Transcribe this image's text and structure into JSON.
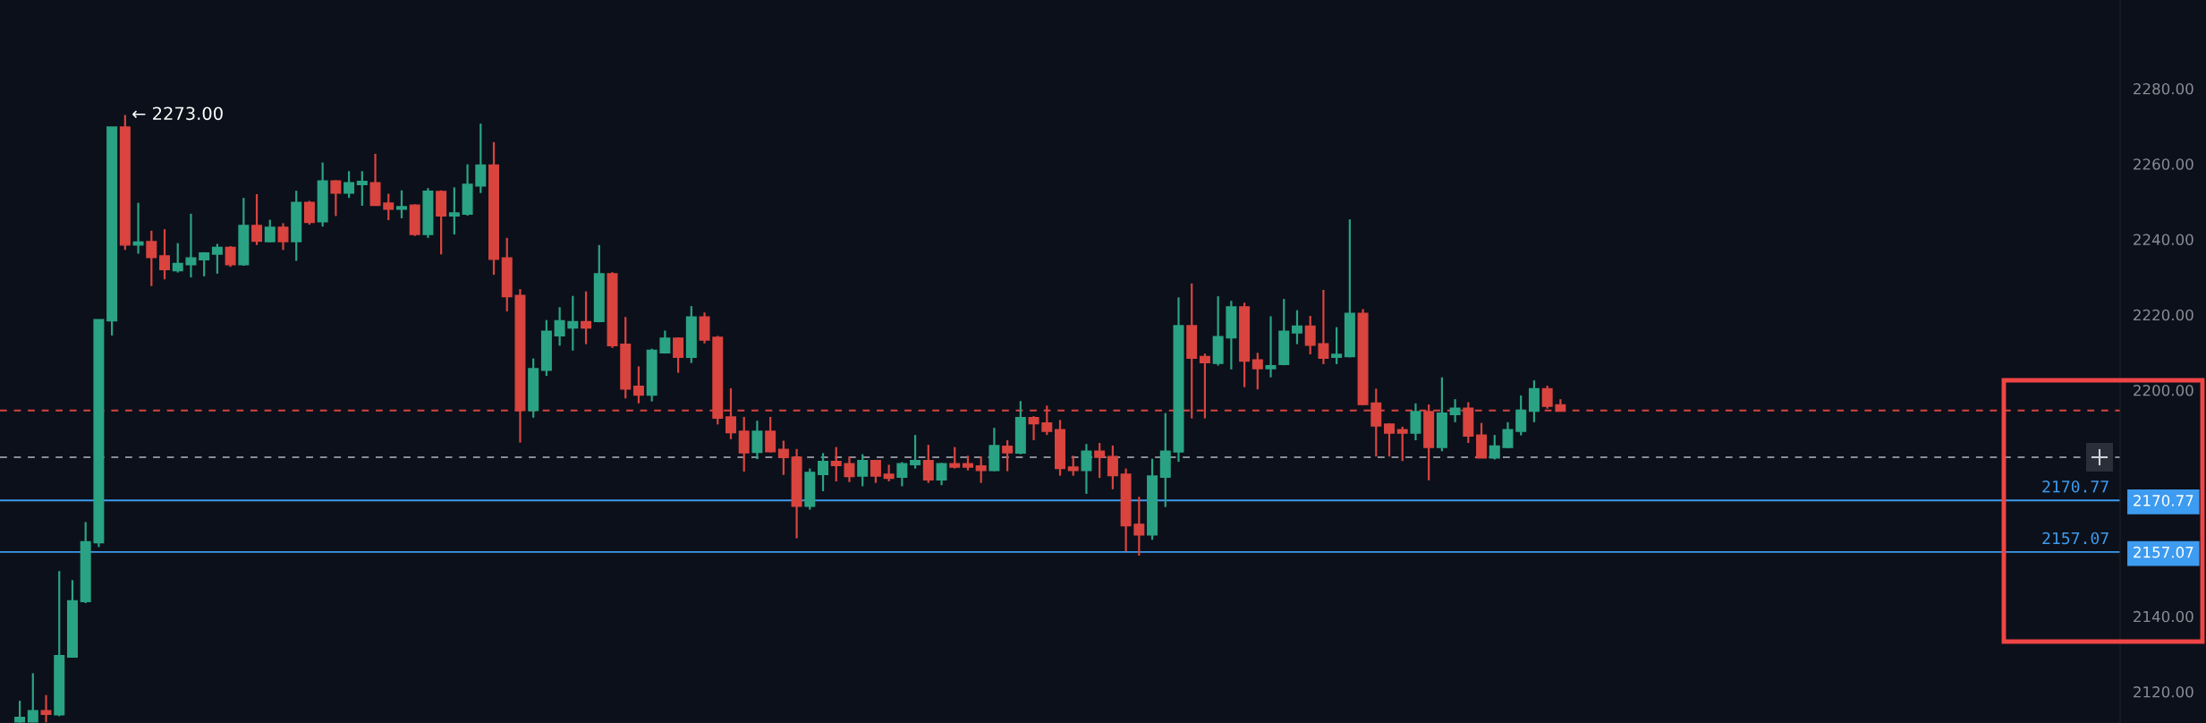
{
  "chart_data": {
    "type": "candlestick",
    "categories": [
      null,
      null,
      null,
      null,
      null,
      null,
      null,
      null,
      null,
      null,
      null,
      null,
      null,
      null,
      null,
      null,
      null,
      null,
      null,
      null,
      null,
      null,
      null,
      null,
      null,
      null,
      null,
      null,
      null,
      null,
      null,
      null,
      null,
      null,
      null,
      null,
      null,
      null,
      null,
      null,
      null,
      null,
      null,
      null,
      null,
      null,
      null,
      null,
      null,
      null,
      null,
      null,
      null,
      null,
      null,
      null,
      null,
      null,
      null,
      null,
      null,
      null,
      null,
      null,
      null,
      null,
      null,
      null,
      null,
      null,
      null,
      null,
      null,
      null,
      null,
      null,
      null,
      null,
      null,
      null,
      null,
      null,
      null,
      null,
      null,
      null,
      null,
      null,
      null,
      null,
      null,
      null,
      null,
      null,
      null,
      null,
      null,
      null,
      null,
      null,
      null,
      null,
      null,
      null,
      null,
      null,
      null,
      null,
      null,
      null,
      null,
      null,
      null,
      null,
      null,
      null,
      null,
      null,
      null,
      null,
      null,
      null,
      null,
      null,
      null,
      null,
      null,
      null,
      null,
      null,
      null,
      null,
      null,
      null,
      null,
      null,
      null,
      null,
      null,
      null,
      null,
      null,
      null,
      null,
      null,
      null,
      null,
      null,
      null,
      null,
      null,
      null,
      null,
      null,
      null,
      null,
      null,
      null,
      null,
      null,
      null
    ],
    "ohlc": [
      null,
      [
        2112.0,
        2117.6,
        2111.8,
        2113.2
      ],
      [
        2112.0,
        2124.9,
        2111.9,
        2115.0
      ],
      [
        2115.0,
        2119.1,
        2111.9,
        2114.0
      ],
      [
        2113.9,
        2152.0,
        2113.5,
        2129.6
      ],
      [
        2129.2,
        2149.6,
        2129.0,
        2144.1
      ],
      [
        2143.9,
        2165.0,
        2143.5,
        2159.8
      ],
      [
        2159.5,
        2218.7,
        2158.4,
        2218.7
      ],
      [
        2218.4,
        2269.8,
        2214.5,
        2269.8
      ],
      [
        2269.8,
        2273.0,
        2237.2,
        2238.5
      ],
      [
        2238.5,
        2249.7,
        2236.2,
        2239.3
      ],
      [
        2239.4,
        2242.3,
        2227.6,
        2235.2
      ],
      [
        2235.6,
        2242.7,
        2229.4,
        2232.0
      ],
      [
        2231.7,
        2239.0,
        2231.2,
        2233.6
      ],
      [
        2233.3,
        2246.8,
        2229.9,
        2235.1
      ],
      [
        2234.6,
        2236.6,
        2230.2,
        2236.4
      ],
      [
        2236.1,
        2238.8,
        2230.9,
        2237.9
      ],
      [
        2237.9,
        2238.2,
        2232.7,
        2233.3
      ],
      [
        2233.3,
        2251.0,
        2233.0,
        2243.7
      ],
      [
        2243.7,
        2252.0,
        2238.5,
        2239.5
      ],
      [
        2239.4,
        2245.2,
        2239.2,
        2243.2
      ],
      [
        2243.2,
        2244.3,
        2237.2,
        2239.4
      ],
      [
        2239.4,
        2252.9,
        2234.3,
        2249.8
      ],
      [
        2249.8,
        2250.2,
        2243.9,
        2244.5
      ],
      [
        2244.7,
        2260.4,
        2243.4,
        2255.5
      ],
      [
        2255.5,
        2255.7,
        2246.2,
        2252.3
      ],
      [
        2252.3,
        2258.1,
        2251.0,
        2255.0
      ],
      [
        2254.5,
        2258.1,
        2248.9,
        2255.4
      ],
      [
        2255.0,
        2262.7,
        2249.0,
        2249.0
      ],
      [
        2249.6,
        2252.1,
        2245.1,
        2248.0
      ],
      [
        2248.0,
        2253.0,
        2245.6,
        2248.7
      ],
      [
        2249.1,
        2249.3,
        2240.9,
        2241.3
      ],
      [
        2241.3,
        2253.6,
        2240.4,
        2252.8
      ],
      [
        2252.7,
        2253.0,
        2236.0,
        2246.2
      ],
      [
        2246.2,
        2253.8,
        2241.3,
        2247.0
      ],
      [
        2246.7,
        2259.9,
        2246.3,
        2254.6
      ],
      [
        2254.2,
        2270.7,
        2252.3,
        2259.7
      ],
      [
        2259.7,
        2265.8,
        2230.6,
        2234.7
      ],
      [
        2235.1,
        2240.4,
        2220.9,
        2224.8
      ],
      [
        2225.1,
        2226.8,
        2186.1,
        2194.6
      ],
      [
        2194.6,
        2208.4,
        2192.7,
        2205.7
      ],
      [
        2205.3,
        2218.6,
        2203.8,
        2215.6
      ],
      [
        2214.4,
        2222.0,
        2211.8,
        2218.4
      ],
      [
        2216.5,
        2225.0,
        2210.5,
        2218.2
      ],
      [
        2218.2,
        2226.2,
        2212.2,
        2216.5
      ],
      [
        2218.2,
        2238.5,
        2218.0,
        2230.9
      ],
      [
        2230.9,
        2231.3,
        2211.2,
        2211.8
      ],
      [
        2212.2,
        2219.4,
        2197.8,
        2200.3
      ],
      [
        2201.0,
        2206.3,
        2196.5,
        2198.7
      ],
      [
        2198.7,
        2211.0,
        2197.0,
        2210.6
      ],
      [
        2209.9,
        2215.8,
        2209.7,
        2213.8
      ],
      [
        2213.8,
        2214.0,
        2204.6,
        2208.7
      ],
      [
        2208.7,
        2222.3,
        2207.2,
        2219.4
      ],
      [
        2219.4,
        2220.6,
        2212.4,
        2213.3
      ],
      [
        2214.0,
        2214.4,
        2190.9,
        2192.6
      ],
      [
        2192.9,
        2200.5,
        2187.0,
        2188.7
      ],
      [
        2189.1,
        2192.9,
        2178.4,
        2183.4
      ],
      [
        2183.5,
        2191.9,
        2181.7,
        2189.1
      ],
      [
        2189.1,
        2192.9,
        2183.5,
        2183.7
      ],
      [
        2184.3,
        2186.6,
        2177.5,
        2182.1
      ],
      [
        2182.2,
        2184.4,
        2160.7,
        2169.2
      ],
      [
        2169.2,
        2179.2,
        2168.3,
        2178.2
      ],
      [
        2177.6,
        2183.3,
        2173.2,
        2181.1
      ],
      [
        2181.1,
        2184.9,
        2175.8,
        2180.0
      ],
      [
        2180.5,
        2182.4,
        2175.6,
        2177.1
      ],
      [
        2177.2,
        2183.0,
        2174.5,
        2181.3
      ],
      [
        2181.3,
        2181.5,
        2175.4,
        2177.2
      ],
      [
        2177.7,
        2180.2,
        2175.8,
        2176.6
      ],
      [
        2176.9,
        2180.9,
        2174.5,
        2180.5
      ],
      [
        2180.2,
        2188.1,
        2179.2,
        2181.3
      ],
      [
        2181.3,
        2185.5,
        2175.4,
        2176.2
      ],
      [
        2176.2,
        2180.7,
        2174.8,
        2180.5
      ],
      [
        2180.5,
        2184.9,
        2179.2,
        2179.6
      ],
      [
        2180.5,
        2182.6,
        2178.7,
        2179.6
      ],
      [
        2179.9,
        2182.4,
        2175.4,
        2178.7
      ],
      [
        2178.7,
        2190.0,
        2178.5,
        2185.3
      ],
      [
        2185.1,
        2186.7,
        2178.5,
        2183.4
      ],
      [
        2183.3,
        2197.1,
        2183.0,
        2192.7
      ],
      [
        2192.7,
        2193.1,
        2186.7,
        2191.1
      ],
      [
        2191.3,
        2195.9,
        2188.1,
        2189.1
      ],
      [
        2189.5,
        2192.1,
        2177.3,
        2179.2
      ],
      [
        2179.6,
        2182.6,
        2177.3,
        2178.7
      ],
      [
        2178.7,
        2185.7,
        2172.5,
        2183.8
      ],
      [
        2183.8,
        2186.0,
        2176.7,
        2182.2
      ],
      [
        2182.4,
        2185.3,
        2173.7,
        2177.3
      ],
      [
        2177.7,
        2179.2,
        2157.2,
        2164.0
      ],
      [
        2164.4,
        2171.7,
        2156.1,
        2161.6
      ],
      [
        2161.6,
        2181.8,
        2160.3,
        2177.2
      ],
      [
        2176.9,
        2193.9,
        2169.0,
        2183.8
      ],
      [
        2183.6,
        2224.6,
        2181.0,
        2217.1
      ],
      [
        2217.1,
        2228.3,
        2192.5,
        2208.5
      ],
      [
        2208.9,
        2209.7,
        2192.5,
        2207.3
      ],
      [
        2207.1,
        2224.9,
        2206.5,
        2214.2
      ],
      [
        2213.9,
        2223.7,
        2205.5,
        2222.1
      ],
      [
        2222.1,
        2223.2,
        2200.8,
        2207.7
      ],
      [
        2208.0,
        2209.9,
        2200.2,
        2205.7
      ],
      [
        2205.7,
        2219.6,
        2203.4,
        2206.5
      ],
      [
        2206.8,
        2224.2,
        2206.6,
        2215.6
      ],
      [
        2215.2,
        2221.2,
        2212.2,
        2217.0
      ],
      [
        2217.0,
        2219.7,
        2209.5,
        2211.9
      ],
      [
        2212.3,
        2226.6,
        2206.9,
        2208.5
      ],
      [
        2208.7,
        2216.7,
        2206.9,
        2209.5
      ],
      [
        2208.9,
        2245.3,
        2208.7,
        2220.4
      ],
      [
        2220.4,
        2221.5,
        2196.0,
        2196.2
      ],
      [
        2196.6,
        2200.4,
        2182.4,
        2190.5
      ],
      [
        2191.0,
        2191.2,
        2182.4,
        2188.6
      ],
      [
        2189.5,
        2190.3,
        2181.2,
        2188.6
      ],
      [
        2188.6,
        2196.5,
        2186.7,
        2194.3
      ],
      [
        2194.3,
        2196.2,
        2176.1,
        2184.8
      ],
      [
        2184.8,
        2203.4,
        2183.8,
        2193.9
      ],
      [
        2193.5,
        2197.6,
        2191.5,
        2195.2
      ],
      [
        2195.2,
        2196.8,
        2186.0,
        2187.8
      ],
      [
        2188.1,
        2191.3,
        2182.0,
        2182.0
      ],
      [
        2182.0,
        2188.1,
        2181.6,
        2185.2
      ],
      [
        2184.8,
        2191.5,
        2184.6,
        2189.5
      ],
      [
        2189.1,
        2198.6,
        2188.0,
        2194.7
      ],
      [
        2194.4,
        2202.6,
        2191.5,
        2200.4
      ],
      [
        2200.4,
        2201.2,
        2195.1,
        2195.7
      ],
      [
        2196.1,
        2197.6,
        2194.4,
        2194.4
      ],
      null,
      null,
      null,
      null,
      null,
      null,
      null,
      null,
      null,
      null,
      null,
      null,
      null,
      null,
      null,
      null,
      null,
      null,
      null,
      null,
      null,
      null,
      null,
      null,
      null,
      null,
      null,
      null,
      null,
      null,
      null,
      null,
      null,
      null,
      null,
      null,
      null,
      null,
      null,
      null,
      null,
      null
    ],
    "ylim": [
      2111.7,
      2303.5
    ],
    "yticks": [
      {
        "value": 2120,
        "label": "2120.00"
      },
      {
        "value": 2140,
        "label": "2140.00"
      },
      {
        "value": 2157.07,
        "label": "2157.07"
      },
      {
        "value": 2170.77,
        "label": "2170.77"
      },
      {
        "value": 2200,
        "label": "2200.00"
      },
      {
        "value": 2220,
        "label": "2220.00"
      },
      {
        "value": 2240,
        "label": "2240.00"
      },
      {
        "value": 2260,
        "label": "2260.00"
      },
      {
        "value": 2280,
        "label": "2280.00"
      }
    ],
    "tick_labels": "y",
    "grid": false,
    "ref_lines": [
      {
        "axis": "y",
        "value": 2194.6,
        "color": "#d9443f",
        "line_style": "dashed"
      },
      {
        "axis": "y",
        "value": 2182.2,
        "color": "#8a8d96",
        "line_style": "dashed"
      },
      {
        "axis": "y",
        "value": 2170.77,
        "label": "2170.77",
        "color": "#3d9bf0",
        "line_style": "solid"
      },
      {
        "axis": "y",
        "value": 2157.07,
        "label": "2157.07",
        "color": "#3d9bf0",
        "line_style": "solid"
      }
    ],
    "annotations": [
      "← 2273.00"
    ]
  }
}
